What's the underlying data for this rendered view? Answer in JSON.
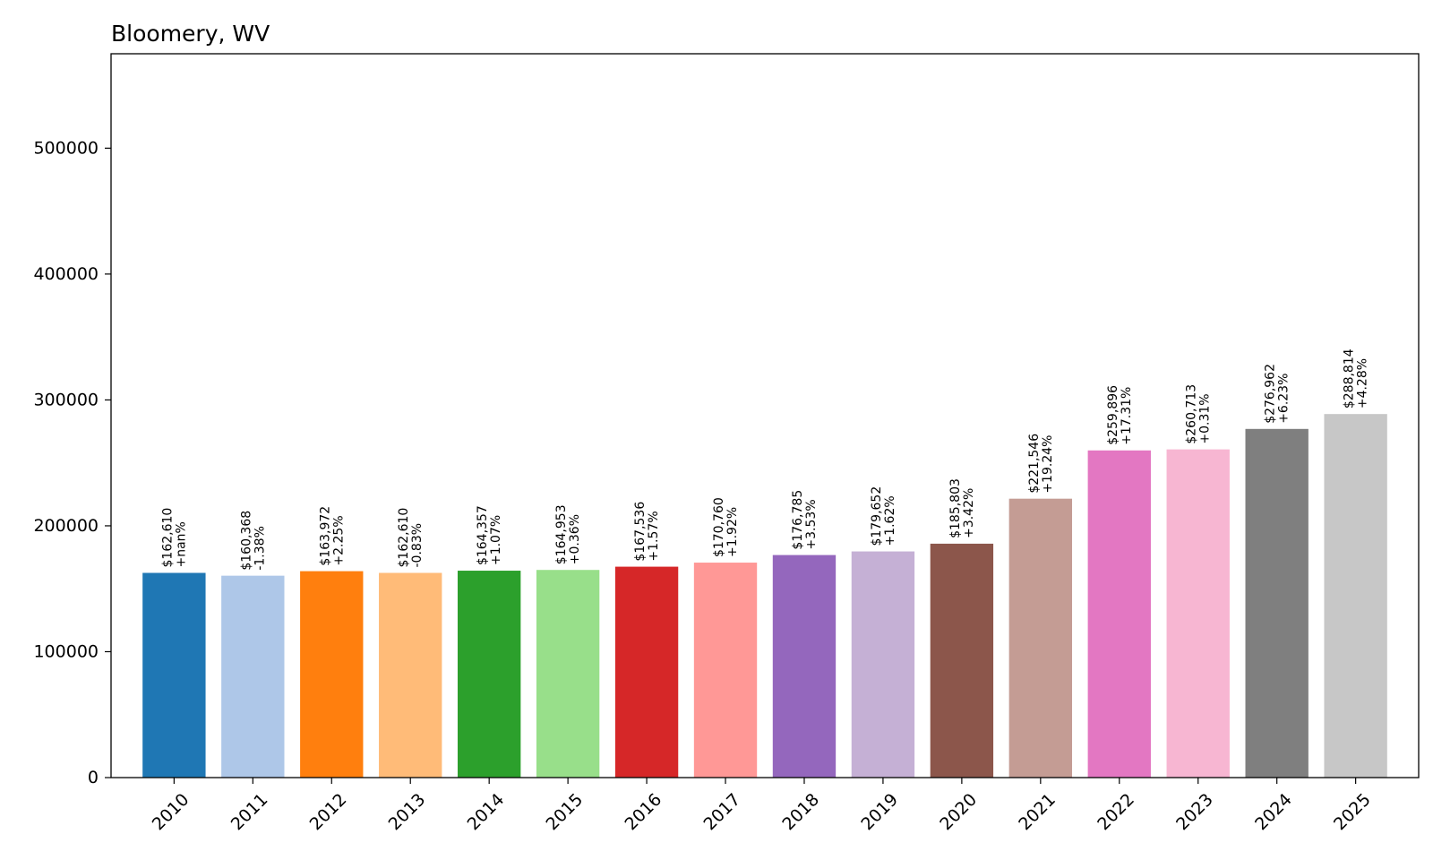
{
  "chart_data": {
    "type": "bar",
    "title": "Bloomery, WV",
    "xlabel": "",
    "ylabel": "",
    "ylim": [
      0,
      575000
    ],
    "yticks": [
      0,
      100000,
      200000,
      300000,
      400000,
      500000
    ],
    "ytick_labels": [
      "0",
      "100000",
      "200000",
      "300000",
      "400000",
      "500000"
    ],
    "grid": false,
    "categories": [
      "2010",
      "2011",
      "2012",
      "2013",
      "2014",
      "2015",
      "2016",
      "2017",
      "2018",
      "2019",
      "2020",
      "2021",
      "2022",
      "2023",
      "2024",
      "2025"
    ],
    "values": [
      162610,
      160368,
      163972,
      162610,
      164357,
      164953,
      167536,
      170760,
      176785,
      179652,
      185803,
      221546,
      259896,
      260713,
      276962,
      288814
    ],
    "value_labels": [
      "$162,610",
      "$160,368",
      "$163,972",
      "$162,610",
      "$164,357",
      "$164,953",
      "$167,536",
      "$170,760",
      "$176,785",
      "$179,652",
      "$185,803",
      "$221,546",
      "$259,896",
      "$260,713",
      "$276,962",
      "$288,814"
    ],
    "change_labels": [
      "+nan%",
      "-1.38%",
      "+2.25%",
      "-0.83%",
      "+1.07%",
      "+0.36%",
      "+1.57%",
      "+1.92%",
      "+3.53%",
      "+1.62%",
      "+3.42%",
      "+19.24%",
      "+17.31%",
      "+0.31%",
      "+6.23%",
      "+4.28%"
    ],
    "colors": [
      "#1f77b4",
      "#aec7e8",
      "#ff7f0e",
      "#ffbb78",
      "#2ca02c",
      "#98df8a",
      "#d62728",
      "#ff9896",
      "#9467bd",
      "#c5b0d5",
      "#8c564b",
      "#c49c94",
      "#e377c2",
      "#f7b6d2",
      "#7f7f7f",
      "#c7c7c7"
    ]
  }
}
